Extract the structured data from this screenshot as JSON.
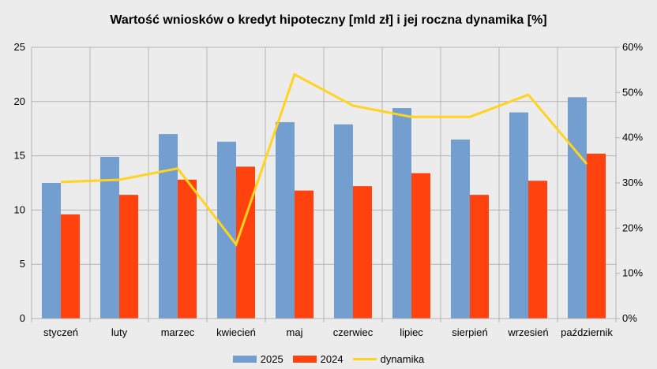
{
  "chart_data": {
    "type": "bar",
    "title": "Wartość wniosków o kredyt hipoteczny [mld zł] i jej roczna dynamika [%]",
    "categories": [
      "styczeń",
      "luty",
      "marzec",
      "kwiecień",
      "maj",
      "czerwiec",
      "lipiec",
      "sierpień",
      "wrzesień",
      "październik"
    ],
    "series": [
      {
        "name": "2025",
        "type": "bar",
        "axis": "left",
        "color": "#729fcf",
        "values": [
          12.5,
          14.9,
          17.0,
          16.3,
          18.1,
          17.9,
          19.4,
          16.5,
          19.0,
          20.4
        ]
      },
      {
        "name": "2024",
        "type": "bar",
        "axis": "left",
        "color": "#ff420e",
        "values": [
          9.6,
          11.4,
          12.8,
          14.0,
          11.8,
          12.2,
          13.4,
          11.4,
          12.7,
          15.2
        ]
      },
      {
        "name": "dynamika",
        "type": "line",
        "axis": "right",
        "color": "#ffd320",
        "values": [
          30.2,
          30.7,
          33.2,
          16.4,
          54.0,
          47.1,
          44.6,
          44.6,
          49.5,
          34.2
        ]
      }
    ],
    "y_left": {
      "min": 0,
      "max": 25,
      "ticks": [
        0,
        5,
        10,
        15,
        20,
        25
      ]
    },
    "y_right": {
      "min": 0,
      "max": 60,
      "ticks": [
        "0%",
        "10%",
        "20%",
        "30%",
        "40%",
        "50%",
        "60%"
      ]
    },
    "grid": true,
    "legend_position": "bottom"
  }
}
